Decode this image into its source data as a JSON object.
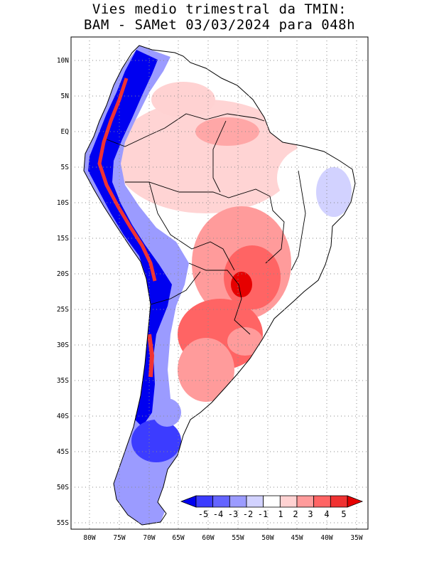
{
  "title_line1": "Vies medio trimestral da TMIN:",
  "title_line2": "BAM - SAMet 03/03/2024  para 048h",
  "lat_labels": [
    "10N",
    "5N",
    "EQ",
    "5S",
    "10S",
    "15S",
    "20S",
    "25S",
    "30S",
    "35S",
    "40S",
    "45S",
    "50S",
    "55S"
  ],
  "lon_labels": [
    "80W",
    "75W",
    "70W",
    "65W",
    "60W",
    "55W",
    "50W",
    "45W",
    "40W",
    "35W"
  ],
  "colorbar": {
    "labels": [
      "-5",
      "-4",
      "-3",
      "-2",
      "-1",
      "1",
      "2",
      "3",
      "4",
      "5"
    ],
    "colors": [
      "#0000f0",
      "#3c3cff",
      "#6464ff",
      "#9b9bff",
      "#d2d2ff",
      "#ffffff",
      "#ffd2d2",
      "#ff9b9b",
      "#ff6464",
      "#f03232",
      "#e60000"
    ]
  },
  "map": {
    "region": "South America",
    "lon_range": [
      "82W",
      "34W"
    ],
    "lat_range": [
      "12N",
      "56S"
    ],
    "grid": "dotted",
    "colors": {
      "land_outline": "#000000",
      "strong_cold": "#0000f0",
      "cold": "#6464ff",
      "light_cold": "#d2d2ff",
      "light_warm": "#ffd2d2",
      "warm": "#ff9b9b",
      "strong_warm": "#f03232"
    }
  }
}
